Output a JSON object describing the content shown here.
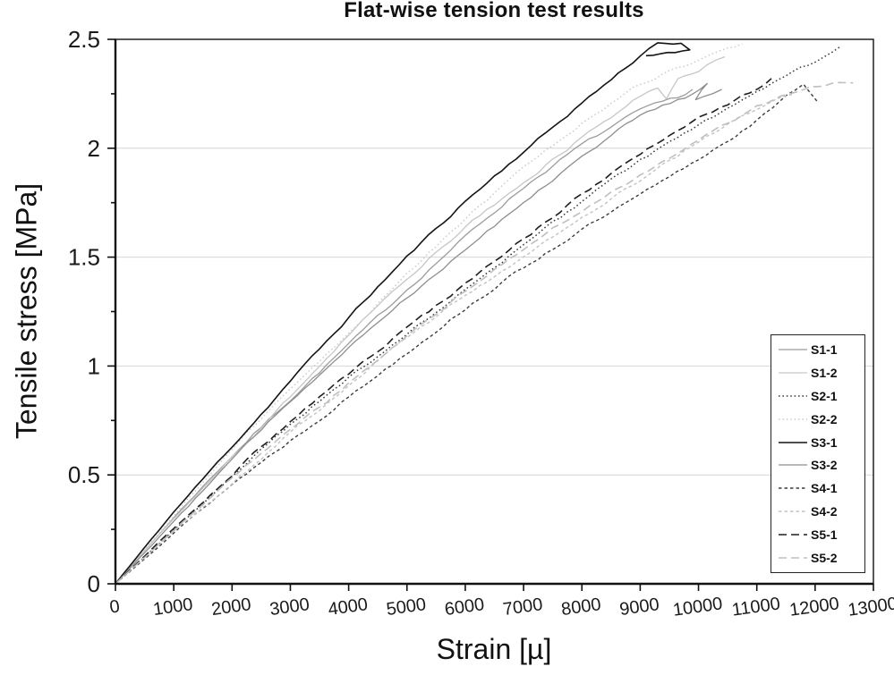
{
  "chart_data": {
    "type": "line",
    "title": "Flat-wise tension test results",
    "xlabel": "Strain [µ]",
    "ylabel": "Tensile stress [MPa]",
    "xlim": [
      0,
      13000
    ],
    "ylim": [
      0,
      2.5
    ],
    "x_ticks": [
      0,
      1000,
      2000,
      3000,
      4000,
      5000,
      6000,
      7000,
      8000,
      9000,
      10000,
      11000,
      12000,
      13000
    ],
    "y_ticks": [
      0,
      0.5,
      1,
      1.5,
      2,
      2.5
    ],
    "y_tick_labels": [
      "0",
      "0.5",
      "1",
      "1.5",
      "2",
      "2.5"
    ],
    "y_minor_step": 0.25,
    "grid": "horizontal-major-only",
    "legend_position": "inside-bottom-right",
    "colors": {
      "background": "#ffffff",
      "axis": "#111111",
      "grid": "#d4d4d4",
      "title": "#111111",
      "tick_label": "#1a1a1a"
    },
    "series": [
      {
        "name": "S1-1",
        "color": "#9b9b9b",
        "style": "solid",
        "width": 1.3,
        "points": [
          [
            0,
            0
          ],
          [
            1000,
            0.3
          ],
          [
            2000,
            0.58
          ],
          [
            3000,
            0.85
          ],
          [
            4000,
            1.11
          ],
          [
            5000,
            1.36
          ],
          [
            6000,
            1.59
          ],
          [
            7000,
            1.81
          ],
          [
            8000,
            2.01
          ],
          [
            9000,
            2.18
          ],
          [
            9900,
            2.27
          ]
        ]
      },
      {
        "name": "S1-2",
        "color": "#c6c6c6",
        "style": "solid",
        "width": 1.3,
        "points": [
          [
            0,
            0
          ],
          [
            1000,
            0.3
          ],
          [
            2000,
            0.59
          ],
          [
            3000,
            0.87
          ],
          [
            4000,
            1.14
          ],
          [
            5000,
            1.39
          ],
          [
            6000,
            1.63
          ],
          [
            7000,
            1.85
          ],
          [
            8000,
            2.06
          ],
          [
            9000,
            2.25
          ],
          [
            9300,
            2.28
          ],
          [
            9450,
            2.23
          ],
          [
            9650,
            2.31
          ],
          [
            10000,
            2.34
          ],
          [
            10450,
            2.42
          ]
        ]
      },
      {
        "name": "S2-1",
        "color": "#3c3c3c",
        "style": "dotted",
        "width": 1.5,
        "points": [
          [
            0,
            0
          ],
          [
            1000,
            0.25
          ],
          [
            2000,
            0.49
          ],
          [
            3000,
            0.72
          ],
          [
            4000,
            0.94
          ],
          [
            5000,
            1.15
          ],
          [
            6000,
            1.36
          ],
          [
            7000,
            1.56
          ],
          [
            8000,
            1.75
          ],
          [
            9000,
            1.93
          ],
          [
            10000,
            2.1
          ],
          [
            11000,
            2.27
          ],
          [
            12000,
            2.41
          ],
          [
            12450,
            2.47
          ]
        ]
      },
      {
        "name": "S2-2",
        "color": "#cdcdcd",
        "style": "dotted",
        "width": 1.5,
        "points": [
          [
            0,
            0
          ],
          [
            1000,
            0.31
          ],
          [
            2000,
            0.61
          ],
          [
            3000,
            0.9
          ],
          [
            4000,
            1.17
          ],
          [
            5000,
            1.43
          ],
          [
            6000,
            1.67
          ],
          [
            7000,
            1.9
          ],
          [
            8000,
            2.11
          ],
          [
            9000,
            2.3
          ],
          [
            10000,
            2.42
          ],
          [
            10750,
            2.48
          ]
        ]
      },
      {
        "name": "S3-1",
        "color": "#141414",
        "style": "solid",
        "width": 1.6,
        "points": [
          [
            0,
            0
          ],
          [
            1000,
            0.33
          ],
          [
            2000,
            0.64
          ],
          [
            3000,
            0.94
          ],
          [
            4000,
            1.22
          ],
          [
            5000,
            1.49
          ],
          [
            6000,
            1.75
          ],
          [
            7000,
            1.99
          ],
          [
            8000,
            2.22
          ],
          [
            9000,
            2.43
          ],
          [
            9300,
            2.49
          ],
          [
            9700,
            2.475
          ],
          [
            9850,
            2.44
          ],
          [
            9100,
            2.425
          ]
        ]
      },
      {
        "name": "S3-2",
        "color": "#8e8e8e",
        "style": "solid",
        "width": 1.3,
        "points": [
          [
            0,
            0
          ],
          [
            1000,
            0.29
          ],
          [
            2000,
            0.57
          ],
          [
            3000,
            0.83
          ],
          [
            4000,
            1.08
          ],
          [
            5000,
            1.32
          ],
          [
            6000,
            1.55
          ],
          [
            7000,
            1.76
          ],
          [
            8000,
            1.96
          ],
          [
            9000,
            2.14
          ],
          [
            9900,
            2.24
          ],
          [
            10150,
            2.3
          ],
          [
            9950,
            2.22
          ],
          [
            10400,
            2.27
          ]
        ]
      },
      {
        "name": "S4-1",
        "color": "#3c3c3c",
        "style": "short-dash",
        "width": 1.4,
        "points": [
          [
            0,
            0
          ],
          [
            1000,
            0.23
          ],
          [
            2000,
            0.45
          ],
          [
            3000,
            0.66
          ],
          [
            4000,
            0.87
          ],
          [
            5000,
            1.07
          ],
          [
            6000,
            1.26
          ],
          [
            7000,
            1.44
          ],
          [
            8000,
            1.62
          ],
          [
            9000,
            1.79
          ],
          [
            10000,
            1.96
          ],
          [
            11000,
            2.13
          ],
          [
            11800,
            2.29
          ],
          [
            12050,
            2.21
          ]
        ]
      },
      {
        "name": "S4-2",
        "color": "#c2c2c2",
        "style": "short-dash",
        "width": 1.4,
        "points": [
          [
            0,
            0
          ],
          [
            1000,
            0.24
          ],
          [
            2000,
            0.47
          ],
          [
            3000,
            0.7
          ],
          [
            4000,
            0.91
          ],
          [
            5000,
            1.12
          ],
          [
            6000,
            1.32
          ],
          [
            7000,
            1.51
          ],
          [
            8000,
            1.69
          ],
          [
            9000,
            1.86
          ],
          [
            10000,
            2.02
          ],
          [
            11000,
            2.17
          ],
          [
            11650,
            2.25
          ]
        ]
      },
      {
        "name": "S5-1",
        "color": "#1f1f1f",
        "style": "dash",
        "width": 1.6,
        "points": [
          [
            0,
            0
          ],
          [
            1000,
            0.26
          ],
          [
            2000,
            0.5
          ],
          [
            3000,
            0.74
          ],
          [
            4000,
            0.96
          ],
          [
            5000,
            1.18
          ],
          [
            6000,
            1.39
          ],
          [
            7000,
            1.59
          ],
          [
            8000,
            1.78
          ],
          [
            9000,
            1.96
          ],
          [
            10000,
            2.13
          ],
          [
            11000,
            2.28
          ],
          [
            11250,
            2.32
          ]
        ]
      },
      {
        "name": "S5-2",
        "color": "#bfbfbf",
        "style": "dash",
        "width": 1.6,
        "points": [
          [
            0,
            0
          ],
          [
            1000,
            0.24
          ],
          [
            2000,
            0.48
          ],
          [
            3000,
            0.71
          ],
          [
            4000,
            0.93
          ],
          [
            5000,
            1.14
          ],
          [
            6000,
            1.34
          ],
          [
            7000,
            1.53
          ],
          [
            8000,
            1.71
          ],
          [
            9000,
            1.88
          ],
          [
            10000,
            2.05
          ],
          [
            11000,
            2.19
          ],
          [
            11800,
            2.27
          ],
          [
            12650,
            2.3
          ]
        ]
      }
    ]
  }
}
